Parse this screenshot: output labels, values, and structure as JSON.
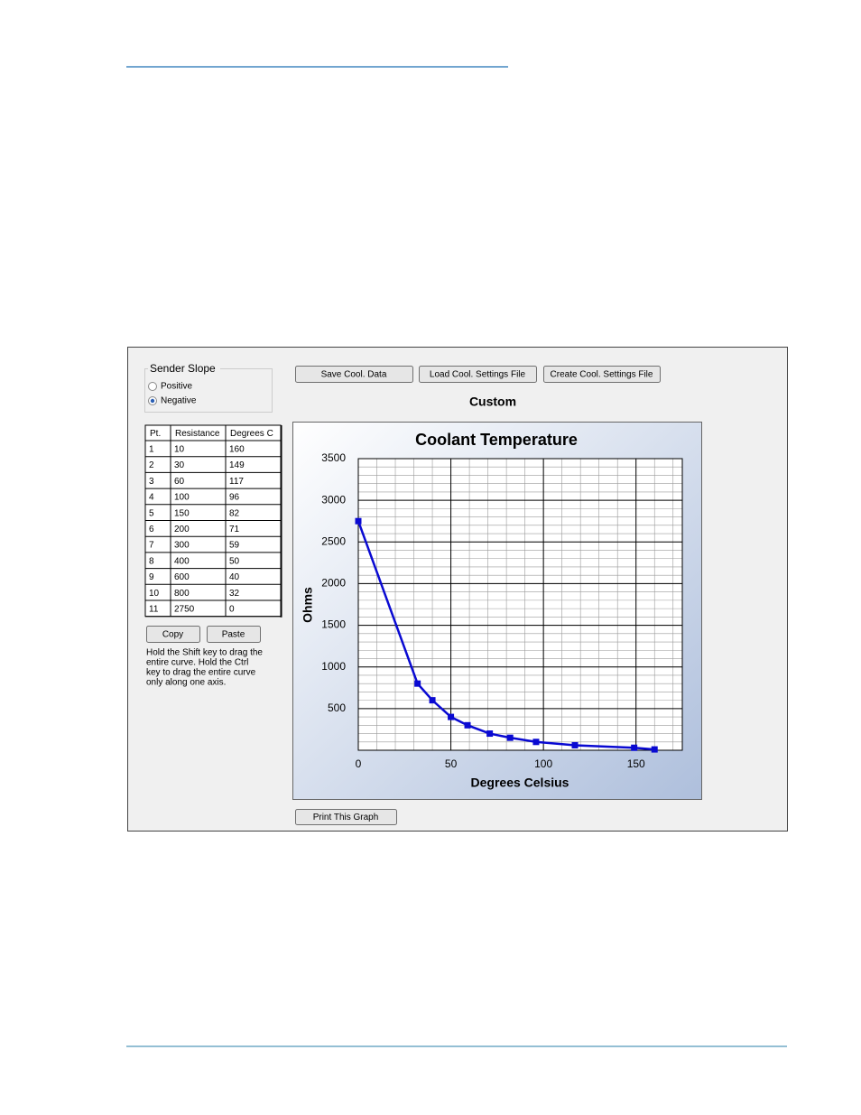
{
  "sender_slope": {
    "title": "Sender Slope",
    "options": [
      "Positive",
      "Negative"
    ],
    "selected": 1
  },
  "buttons": {
    "save": "Save Cool. Data",
    "load": "Load Cool. Settings File",
    "create": "Create Cool. Settings File",
    "copy": "Copy",
    "paste": "Paste",
    "print": "Print This Graph"
  },
  "mode_label": "Custom",
  "table": {
    "headers": [
      "Pt.",
      "Resistance",
      "Degrees C"
    ],
    "rows": [
      [
        "1",
        "10",
        "160"
      ],
      [
        "2",
        "30",
        "149"
      ],
      [
        "3",
        "60",
        "117"
      ],
      [
        "4",
        "100",
        "96"
      ],
      [
        "5",
        "150",
        "82"
      ],
      [
        "6",
        "200",
        "71"
      ],
      [
        "7",
        "300",
        "59"
      ],
      [
        "8",
        "400",
        "50"
      ],
      [
        "9",
        "600",
        "40"
      ],
      [
        "10",
        "800",
        "32"
      ],
      [
        "11",
        "2750",
        "0"
      ]
    ]
  },
  "hint_lines": [
    "Hold the Shift key to drag the",
    "entire curve.  Hold the Ctrl",
    "key to drag the entire curve",
    "only along one axis."
  ],
  "chart_data": {
    "type": "line",
    "title": "Coolant Temperature",
    "x_label": "Degrees Celsius",
    "y_label": "Ohms",
    "x": [
      0,
      32,
      40,
      50,
      59,
      71,
      82,
      96,
      117,
      149,
      160
    ],
    "values": [
      2750,
      800,
      600,
      400,
      300,
      200,
      150,
      100,
      60,
      30,
      10
    ],
    "color": "#0a0ad2",
    "xlim": [
      0,
      175
    ],
    "xticks": [
      0,
      50,
      100,
      150
    ],
    "ylim": [
      0,
      3500
    ],
    "yticks": [
      500,
      1000,
      1500,
      2000,
      2500,
      3000,
      3500
    ],
    "grid": true
  }
}
